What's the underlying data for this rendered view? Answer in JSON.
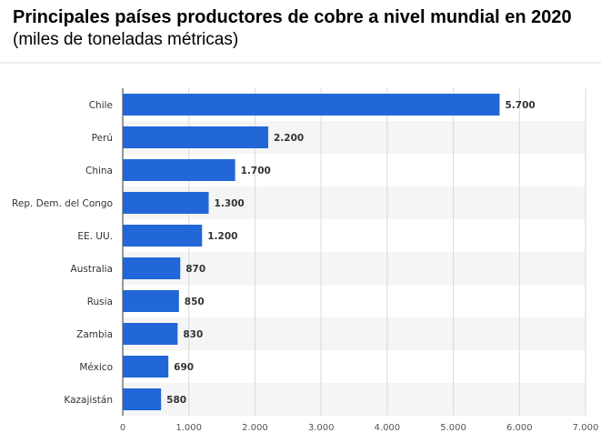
{
  "header": {
    "title": "Principales países productores de cobre a nivel mundial en 2020",
    "subtitle": "(miles de toneladas métricas)"
  },
  "chart_data": {
    "type": "bar",
    "orientation": "horizontal",
    "title": "Principales países productores de cobre a nivel mundial en 2020",
    "subtitle": "(miles de toneladas métricas)",
    "categories": [
      "Chile",
      "Perú",
      "China",
      "Rep. Dem. del Congo",
      "EE. UU.",
      "Australia",
      "Rusia",
      "Zambia",
      "México",
      "Kazajistán"
    ],
    "values": [
      5700,
      2200,
      1700,
      1300,
      1200,
      870,
      850,
      830,
      690,
      580
    ],
    "value_labels": [
      "5.700",
      "2.200",
      "1.700",
      "1.300",
      "1.200",
      "870",
      "850",
      "830",
      "690",
      "580"
    ],
    "xlim": [
      0,
      7000
    ],
    "xticks": [
      0,
      1000,
      2000,
      3000,
      4000,
      5000,
      6000,
      7000
    ],
    "xtick_labels": [
      "0",
      "1.000",
      "2.000",
      "3.000",
      "4.000",
      "5.000",
      "6.000",
      "7.000"
    ],
    "grid": true,
    "legend": "none",
    "colors": {
      "bar": "#2167d8",
      "band": "#f5f5f5",
      "grid": "#d9d9d9",
      "axis": "#333333"
    }
  }
}
